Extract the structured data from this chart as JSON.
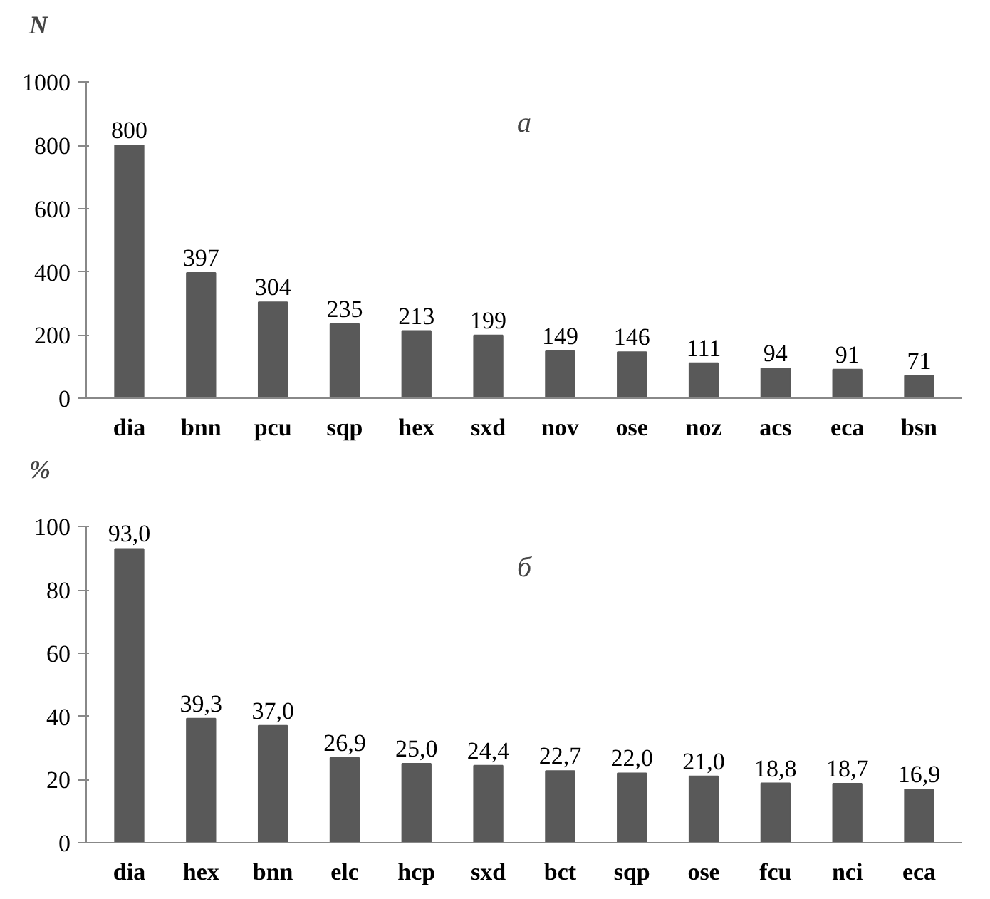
{
  "chart_data": [
    {
      "type": "bar",
      "ylabel": "N",
      "annotations": [
        "a"
      ],
      "categories": [
        "dia",
        "bnn",
        "pcu",
        "sqp",
        "hex",
        "sxd",
        "nov",
        "ose",
        "noz",
        "acs",
        "eca",
        "bsn"
      ],
      "values": [
        800,
        397,
        304,
        235,
        213,
        199,
        149,
        146,
        111,
        94,
        91,
        71
      ],
      "color": "#595959",
      "ylim": [
        0,
        1000
      ],
      "yticks": [
        0,
        200,
        400,
        600,
        800,
        1000
      ],
      "grid": false,
      "data_labels": true
    },
    {
      "type": "bar",
      "ylabel": "%",
      "annotations": [
        "б"
      ],
      "categories": [
        "dia",
        "hex",
        "bnn",
        "elc",
        "hcp",
        "sxd",
        "bct",
        "sqp",
        "ose",
        "fcu",
        "nci",
        "eca"
      ],
      "values": [
        93.0,
        39.3,
        37.0,
        26.9,
        25.0,
        24.4,
        22.7,
        22.0,
        21.0,
        18.8,
        18.7,
        16.9
      ],
      "value_labels": [
        "93,0",
        "39,3",
        "37,0",
        "26,9",
        "25,0",
        "24,4",
        "22,7",
        "22,0",
        "21,0",
        "18,8",
        "18,7",
        "16,9"
      ],
      "color": "#595959",
      "ylim": [
        0,
        100
      ],
      "yticks": [
        0,
        20,
        40,
        60,
        80,
        100
      ],
      "grid": false
    }
  ]
}
